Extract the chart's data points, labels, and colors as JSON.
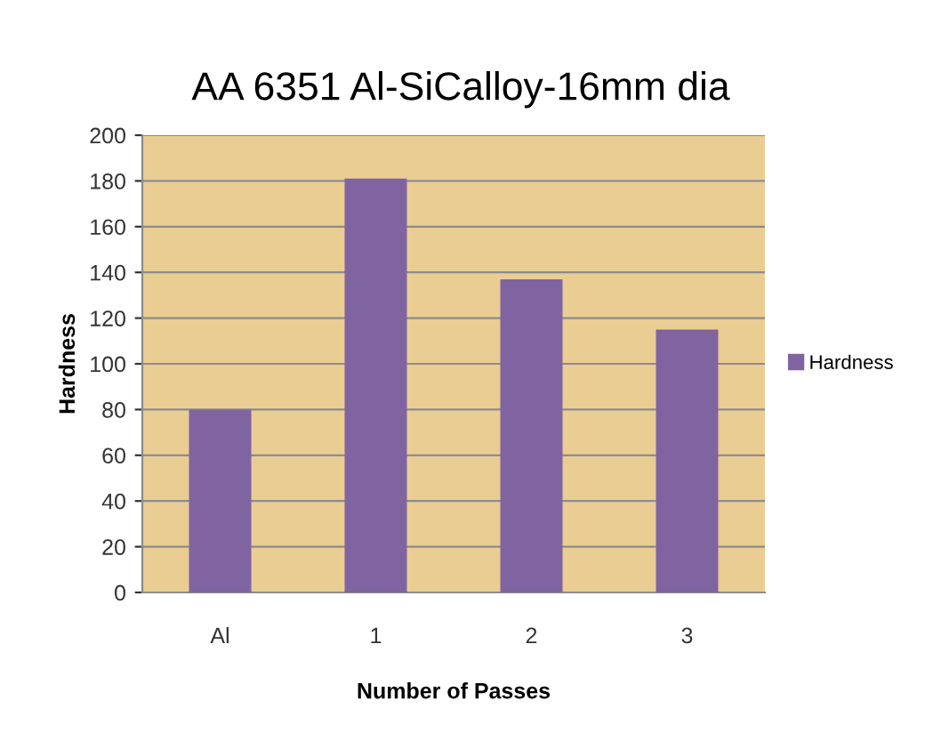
{
  "chart_data": {
    "type": "bar",
    "title": "AA 6351 Al-SiCalloy-16mm dia",
    "xlabel": "Number of Passes",
    "ylabel": "Hardness",
    "categories": [
      "Al",
      "1",
      "2",
      "3"
    ],
    "series": [
      {
        "name": "Hardness",
        "color": "#8064a2",
        "values": [
          80,
          181,
          137,
          115
        ]
      }
    ],
    "ylim": [
      0,
      200
    ],
    "yticks": [
      0,
      20,
      40,
      60,
      80,
      100,
      120,
      140,
      160,
      180,
      200
    ],
    "grid": "y",
    "legend": "right"
  }
}
